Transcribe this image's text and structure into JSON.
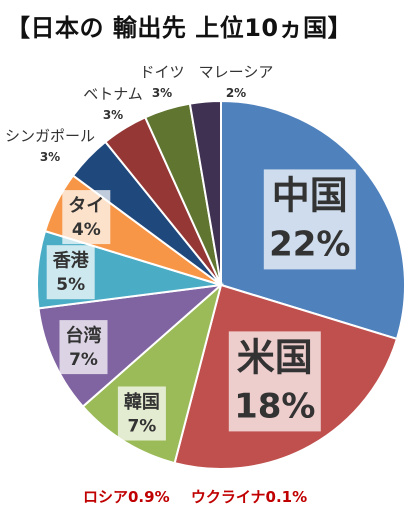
{
  "title": "【日本の 輸出先 上位10ヵ国】",
  "chart_data": {
    "type": "pie",
    "title": "【日本の 輸出先 上位10ヵ国】",
    "unit": "%",
    "slices": [
      {
        "label": "中国",
        "value": 22,
        "value_label": "22%",
        "color": "#4F81BD"
      },
      {
        "label": "米国",
        "value": 18,
        "value_label": "18%",
        "color": "#C0504D"
      },
      {
        "label": "韓国",
        "value": 7,
        "value_label": "7%",
        "color": "#9BBB59"
      },
      {
        "label": "台湾",
        "value": 7,
        "value_label": "7%",
        "color": "#8064A2"
      },
      {
        "label": "香港",
        "value": 5,
        "value_label": "5%",
        "color": "#4BACC6"
      },
      {
        "label": "タイ",
        "value": 4,
        "value_label": "4%",
        "color": "#F79646"
      },
      {
        "label": "シンガポール",
        "value": 3,
        "value_label": "3%",
        "color": "#1F497D"
      },
      {
        "label": "ベトナム",
        "value": 3,
        "value_label": "3%",
        "color": "#953735"
      },
      {
        "label": "ドイツ",
        "value": 3,
        "value_label": "3%",
        "color": "#5F7530"
      },
      {
        "label": "マレーシア",
        "value": 2,
        "value_label": "2%",
        "color": "#3F3151"
      }
    ],
    "annotations": [
      {
        "text": "ロシア0.9%"
      },
      {
        "text": "ウクライナ0.1%"
      }
    ],
    "legend": "none"
  }
}
